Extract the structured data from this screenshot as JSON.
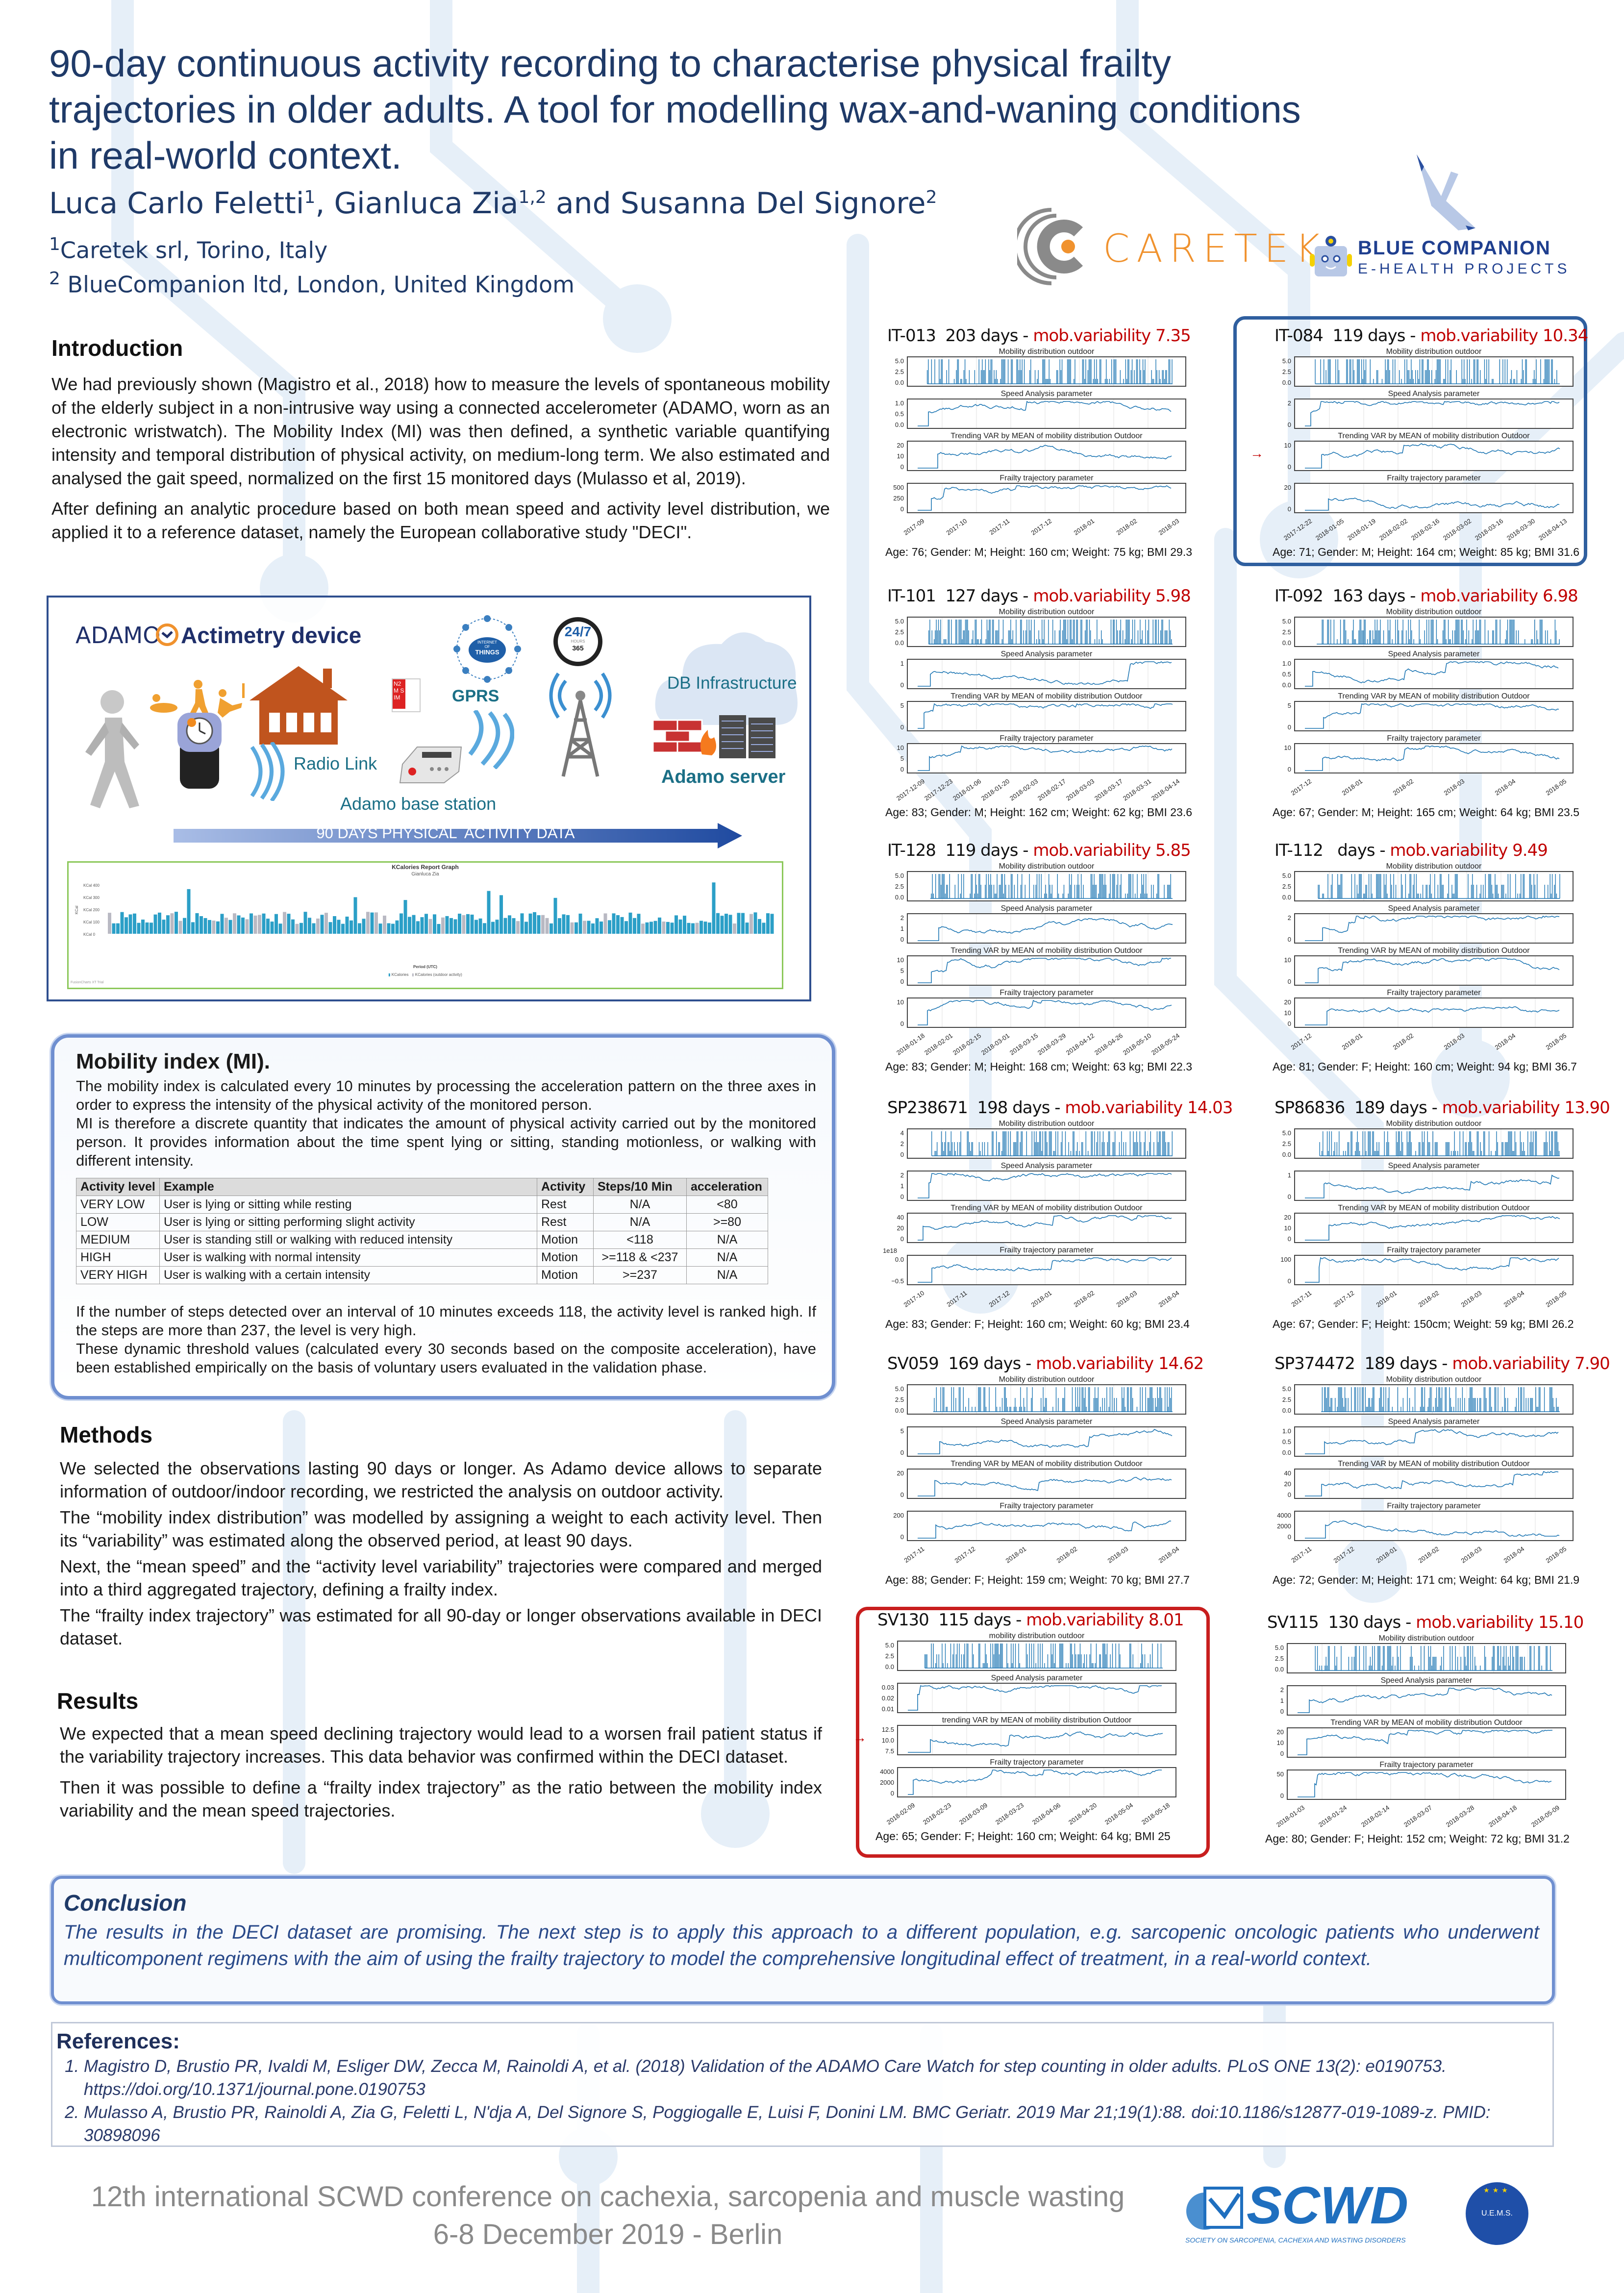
{
  "header": {
    "title_lines": [
      "90-day continuous activity recording to characterise physical frailty",
      "trajectories in older adults. A tool for modelling wax-and-waning conditions",
      "in real-world context."
    ],
    "authors": [
      {
        "name": "Luca Carlo Feletti",
        "sup": "1"
      },
      {
        "name": ", Gianluca Zia",
        "sup": "1,2"
      },
      {
        "name": " and Susanna Del Signore",
        "sup": "2"
      }
    ],
    "affiliations": [
      {
        "sup": "1",
        "text": "Caretek srl, Torino, Italy"
      },
      {
        "sup": "2",
        "text": " BlueCompanion ltd, London, United Kingdom"
      }
    ],
    "logos": {
      "caretek": "CARETEK",
      "blue_companion": "BLUE COMPANION",
      "blue_companion_sub": "E-HEALTH PROJECTS",
      "caretek_color": "#f0922e",
      "blue_color": "#1f3f8f"
    }
  },
  "introduction": {
    "heading": "Introduction",
    "paragraphs": [
      "We had previously shown (Magistro et al., 2018) how to measure the levels of spontaneous mobility of the elderly subject in a non-intrusive way using a connected accelerometer (ADAMO, worn as an electronic wristwatch). The Mobility Index (MI) was then defined, a synthetic variable quantifying intensity and temporal distribution of physical activity, on medium-long term. We also estimated and analysed the gait speed, normalized on the first 15 monitored days (Mulasso et al, 2019).",
      "After defining an analytic procedure based on both mean speed and activity level distribution, we applied it to a reference dataset, namely the European collaborative study \"DECI\"."
    ]
  },
  "adamo_diagram": {
    "logo": "ADAMO",
    "title": "Actimetry device",
    "iot": [
      "INTERNET",
      "OF",
      "THINGS"
    ],
    "clock": [
      "24/7",
      "HOURS",
      "365"
    ],
    "sim": "N2M SIM",
    "gprs": "GPRS",
    "radio_link": "Radio Link",
    "base_station": "Adamo base station",
    "db": "DB Infrastructure",
    "server": "Adamo server",
    "arrow": "90 DAYS PHYSICAL  ACTIVITY DATA",
    "kcal_chart": {
      "title": "KCalories Report Graph",
      "subtitle": "Gianluca Zia",
      "yticks": [
        "KCal 400",
        "KCal 300",
        "KCal 200",
        "KCal 100",
        "KCal 0"
      ],
      "ylabel": "KCal",
      "xlabel": "Period (UTC)",
      "legend": [
        "KCalories",
        "KCalories (outdoor activity)"
      ],
      "watermark": "FusionCharts XT Trial",
      "colors": {
        "kcal": "#2b9fc7",
        "outdoor": "#b9b9c3"
      }
    }
  },
  "mobility_index": {
    "heading": "Mobility index (MI).",
    "intro": [
      "The mobility index is calculated every 10 minutes by processing the acceleration pattern on the three axes in order to express the intensity of the physical activity of the monitored person.",
      "MI is therefore a discrete quantity that indicates the amount of physical activity carried out by the monitored person. It provides information about the time spent lying or sitting, standing motionless, or walking with different intensity."
    ],
    "table": {
      "headers": [
        "Activity level",
        "Example",
        "Activity",
        "Steps/10 Min",
        "acceleration"
      ],
      "rows": [
        [
          "VERY LOW",
          "User is lying or sitting while resting",
          "Rest",
          "N/A",
          "<80"
        ],
        [
          "LOW",
          "User is lying or sitting performing slight activity",
          "Rest",
          "N/A",
          ">=80"
        ],
        [
          "MEDIUM",
          "User is standing still or walking with reduced intensity",
          "Motion",
          "<118",
          "N/A"
        ],
        [
          "HIGH",
          "User is walking with normal intensity",
          "Motion",
          ">=118 & <237",
          "N/A"
        ],
        [
          "VERY HIGH",
          "User is walking with a certain intensity",
          "Motion",
          ">=237",
          "N/A"
        ]
      ]
    },
    "outro": [
      "If the number of steps detected over an interval of 10 minutes exceeds 118, the activity level is ranked high. If the steps are more than 237, the level is very high.",
      "These dynamic threshold values (calculated every 30 seconds based on the composite acceleration), have been established empirically on the basis of voluntary users evaluated in the validation phase."
    ]
  },
  "methods": {
    "heading": "Methods",
    "paragraphs": [
      "We selected the observations lasting 90 days or longer. As Adamo device allows to separate information of outdoor/indoor recording, we restricted the analysis on outdoor activity.",
      "The “mobility index distribution” was modelled by assigning a weight to each activity level. Then its “variability” was estimated along the observed period, at least 90 days.",
      "Next, the “mean speed” and the “activity level variability” trajectories were compared and merged into a third aggregated trajectory, defining a frailty index.",
      "The “frailty index trajectory” was estimated for all 90-day or longer observations available in DECI dataset."
    ]
  },
  "results": {
    "heading": "Results",
    "paragraphs": [
      "We expected that a mean speed declining trajectory would lead to a worsen frail patient status if the variability trajectory increases. This data behavior was confirmed within the DECI dataset.",
      "Then it was possible to define a “frailty index trajectory” as the ratio between the mobility index variability and the mean speed trajectories."
    ]
  },
  "subplot_titles": [
    "Mobility distribution outdoor",
    "Speed Analysis parameter",
    "Trending VAR by MEAN of mobility distribution Outdoor",
    "Frailty trajectory parameter"
  ],
  "panels": [
    {
      "id": "IT-013",
      "days": "203 days",
      "variability": "mob.variability 7.35",
      "caption": "Age: 76; Gender: M; Height: 160 cm; Weight: 75 kg; BMI 29.3",
      "yticks": [
        [
          "0.0",
          "2.5",
          "5.0"
        ],
        [
          "0.0",
          "0.5",
          "1.0"
        ],
        [
          "0",
          "10",
          "20"
        ],
        [
          "0",
          "250",
          "500"
        ]
      ],
      "xticks": [
        "2017-09",
        "2017-10",
        "2017-11",
        "2017-12",
        "2018-01",
        "2018-02",
        "2018-03"
      ]
    },
    {
      "id": "IT-084",
      "days": "119 days",
      "variability": "mob.variability 10.34",
      "caption": "Age: 71; Gender: M; Height: 164 cm; Weight: 85 kg; BMI 31.6",
      "highlight": "blue",
      "arrow": "→",
      "yticks": [
        [
          "0.0",
          "2.5",
          "5.0"
        ],
        [
          "0",
          "2"
        ],
        [
          "0",
          "10"
        ],
        [
          "0",
          "20"
        ]
      ],
      "xticks": [
        "2017-12-22",
        "2018-01-05",
        "2018-01-19",
        "2018-02-02",
        "2018-02-16",
        "2018-03-02",
        "2018-03-16",
        "2018-03-30",
        "2018-04-13"
      ]
    },
    {
      "id": "IT-101",
      "days": "127 days",
      "variability": "mob.variability 5.98",
      "caption": "Age: 83; Gender: M; Height: 162 cm; Weight: 62 kg; BMI 23.6",
      "yticks": [
        [
          "0.0",
          "2.5",
          "5.0"
        ],
        [
          "0",
          "1"
        ],
        [
          "0",
          "5"
        ],
        [
          "0",
          "5",
          "10"
        ]
      ],
      "xticks": [
        "2017-12-09",
        "2017-12-23",
        "2018-01-06",
        "2018-01-20",
        "2018-02-03",
        "2018-02-17",
        "2018-03-03",
        "2018-03-17",
        "2018-03-31",
        "2018-04-14"
      ]
    },
    {
      "id": "IT-092",
      "days": "163 days",
      "variability": "mob.variability 6.98",
      "caption": "Age: 67; Gender: M; Height: 165 cm; Weight: 64 kg; BMI 23.5",
      "yticks": [
        [
          "0.0",
          "2.5",
          "5.0"
        ],
        [
          "0.0",
          "0.5",
          "1.0"
        ],
        [
          "0",
          "5"
        ],
        [
          "0",
          "10"
        ]
      ],
      "xticks": [
        "2017-12",
        "2018-01",
        "2018-02",
        "2018-03",
        "2018-04",
        "2018-05"
      ]
    },
    {
      "id": "IT-128",
      "days": "119 days",
      "variability": "mob.variability 5.85",
      "caption": "Age: 83; Gender: M; Height: 168 cm; Weight: 63 kg; BMI 22.3",
      "yticks": [
        [
          "0.0",
          "2.5",
          "5.0"
        ],
        [
          "0",
          "1",
          "2"
        ],
        [
          "0",
          "5",
          "10"
        ],
        [
          "0",
          "10"
        ]
      ],
      "xticks": [
        "2018-01-18",
        "2018-02-01",
        "2018-02-15",
        "2018-03-01",
        "2018-03-15",
        "2018-03-29",
        "2018-04-12",
        "2018-04-26",
        "2018-05-10",
        "2018-05-24"
      ]
    },
    {
      "id": "IT-112",
      "days": " days",
      "variability": "mob.variability 9.49",
      "caption": "Age: 81; Gender: F; Height: 160 cm; Weight: 94 kg; BMI 36.7",
      "yticks": [
        [
          "0.0",
          "2.5",
          "5.0"
        ],
        [
          "0",
          "2"
        ],
        [
          "0",
          "10"
        ],
        [
          "0",
          "10",
          "20"
        ]
      ],
      "xticks": [
        "2017-12",
        "2018-01",
        "2018-02",
        "2018-03",
        "2018-04",
        "2018-05"
      ]
    },
    {
      "id": "SP238671",
      "days": "198 days",
      "variability": "mob.variability 14.03",
      "caption": "Age: 83; Gender: F; Height: 160 cm; Weight: 60 kg; BMI 23.4",
      "offset_label": "1e18",
      "yticks": [
        [
          "0",
          "2",
          "4"
        ],
        [
          "0",
          "1",
          "2"
        ],
        [
          "0",
          "20",
          "40"
        ],
        [
          "−0.5",
          "0.0"
        ]
      ],
      "xticks": [
        "2017-10",
        "2017-11",
        "2017-12",
        "2018-01",
        "2018-02",
        "2018-03",
        "2018-04"
      ]
    },
    {
      "id": "SP86836",
      "days": "189 days",
      "variability": "mob.variability 13.90",
      "caption": "Age: 67; Gender: F; Height: 150cm; Weight: 59 kg; BMI 26.2",
      "yticks": [
        [
          "0.0",
          "2.5",
          "5.0"
        ],
        [
          "0",
          "1"
        ],
        [
          "0",
          "10",
          "20"
        ],
        [
          "0",
          "100"
        ]
      ],
      "xticks": [
        "2017-11",
        "2017-12",
        "2018-01",
        "2018-02",
        "2018-03",
        "2018-04",
        "2018-05"
      ]
    },
    {
      "id": "SV059",
      "days": "169 days",
      "variability": "mob.variability 14.62",
      "caption": "Age: 88; Gender: F; Height: 159 cm; Weight: 70 kg; BMI 27.7",
      "yticks": [
        [
          "0.0",
          "2.5",
          "5.0"
        ],
        [
          "0",
          "5"
        ],
        [
          "0",
          "20"
        ],
        [
          "0",
          "200"
        ]
      ],
      "xticks": [
        "2017-11",
        "2017-12",
        "2018-01",
        "2018-02",
        "2018-03",
        "2018-04"
      ]
    },
    {
      "id": "SP374472",
      "days": "189 days",
      "variability": "mob.variability 7.90",
      "caption": "Age: 72; Gender: M; Height: 171 cm; Weight: 64 kg; BMI 21.9",
      "yticks": [
        [
          "0.0",
          "2.5",
          "5.0"
        ],
        [
          "0.0",
          "0.5",
          "1.0"
        ],
        [
          "0",
          "20",
          "40"
        ],
        [
          "0",
          "2000",
          "4000"
        ]
      ],
      "xticks": [
        "2017-11",
        "2017-12",
        "2018-01",
        "2018-02",
        "2018-03",
        "2018-04",
        "2018-05"
      ]
    },
    {
      "id": "SV130",
      "days": "115 days",
      "variability": "mob.variability 8.01",
      "caption": "Age: 65; Gender: F; Height: 160 cm; Weight: 64 kg; BMI 25",
      "highlight": "red",
      "arrow": "→",
      "subplot_titles": [
        "mobility distribution outdoor",
        "Speed Analysis parameter",
        "trending VAR by MEAN of mobility distribution Outdoor",
        "Frailty trajectory parameter"
      ],
      "yticks": [
        [
          "0.0",
          "2.5",
          "5.0"
        ],
        [
          "0.01",
          "0.02",
          "0.03"
        ],
        [
          "7.5",
          "10.0",
          "12.5"
        ],
        [
          "0",
          "2000",
          "4000"
        ]
      ],
      "xticks": [
        "2018-02-09",
        "2018-02-23",
        "2018-03-09",
        "2018-03-23",
        "2018-04-06",
        "2018-04-20",
        "2018-05-04",
        "2018-05-18"
      ]
    },
    {
      "id": "SV115",
      "days": "130 days",
      "variability": "mob.variability 15.10",
      "caption": "Age: 80; Gender: F; Height: 152 cm; Weight: 72 kg; BMI 31.2",
      "yticks": [
        [
          "0.0",
          "2.5",
          "5.0"
        ],
        [
          "0",
          "1",
          "2"
        ],
        [
          "0",
          "10",
          "20"
        ],
        [
          "0",
          "50"
        ]
      ],
      "xticks": [
        "2018-01-03",
        "2018-01-24",
        "2018-02-14",
        "2018-03-07",
        "2018-03-28",
        "2018-04-18",
        "2018-05-09"
      ]
    }
  ],
  "conclusion": {
    "heading": "Conclusion",
    "text": "The results in the DECI dataset are promising. The next step is to apply this approach to a different population, e.g. sarcopenic oncologic patients who underwent multicomponent regimens with the aim of using the frailty trajectory to model the comprehensive longitudinal effect of treatment, in a real-world context."
  },
  "references": {
    "heading": "References:",
    "items": [
      "Magistro D, Brustio PR, Ivaldi M, Esliger DW, Zecca M, Rainoldi A, et al. (2018) Validation of the ADAMO Care Watch for step counting in older adults. PLoS ONE 13(2): e0190753. https://doi.org/10.1371/journal.pone.0190753",
      "Mulasso A, Brustio PR, Rainoldi A, Zia G, Feletti L, N'dja A, Del Signore S, Poggiogalle E, Luisi F, Donini LM. BMC Geriatr. 2019 Mar 21;19(1):88. doi:10.1186/s12877-019-1089-z. PMID: 30898096"
    ]
  },
  "footer": {
    "line1": "12th international SCWD conference on cachexia, sarcopenia and muscle wasting",
    "line2": "6-8 December 2019 - Berlin",
    "logo": "SCWD",
    "logo_sub": "SOCIETY ON SARCOPENIA, CACHEXIA AND WASTING DISORDERS",
    "seal": "U.E.M.S.",
    "logo_color": "#1f6fbf"
  },
  "colors": {
    "title": "#1f3a68",
    "variability": "#c00000",
    "plot_line": "#1f77b4",
    "box_border": "#6f8fd0"
  }
}
